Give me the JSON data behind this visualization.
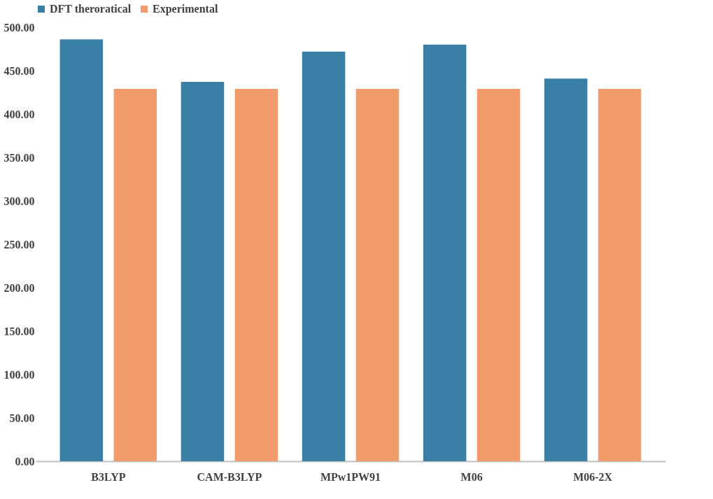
{
  "chart_data": {
    "type": "bar",
    "categories": [
      "B3LYP",
      "CAM-B3LYP",
      "MPw1PW91",
      "M06",
      "M06-2X"
    ],
    "series": [
      {
        "name": "DFT theroratical",
        "color": "#3a7fa6",
        "values": [
          486,
          437,
          472,
          480,
          441
        ]
      },
      {
        "name": "Experimental",
        "color": "#f29c6b",
        "values": [
          429,
          429,
          429,
          429,
          429
        ]
      }
    ],
    "ylim": [
      0,
      500
    ],
    "yticks": [
      {
        "value": 0,
        "label": "0.00"
      },
      {
        "value": 50,
        "label": "50.00"
      },
      {
        "value": 100,
        "label": "100.00"
      },
      {
        "value": 150,
        "label": "150.00"
      },
      {
        "value": 200,
        "label": "200.00"
      },
      {
        "value": 250,
        "label": "250.00"
      },
      {
        "value": 300,
        "label": "300.00"
      },
      {
        "value": 350,
        "label": "350.00"
      },
      {
        "value": 400,
        "label": "400.00"
      },
      {
        "value": 450,
        "label": "450.00"
      },
      {
        "value": 500,
        "label": "500.00"
      }
    ],
    "grid": false,
    "legend": "top"
  }
}
